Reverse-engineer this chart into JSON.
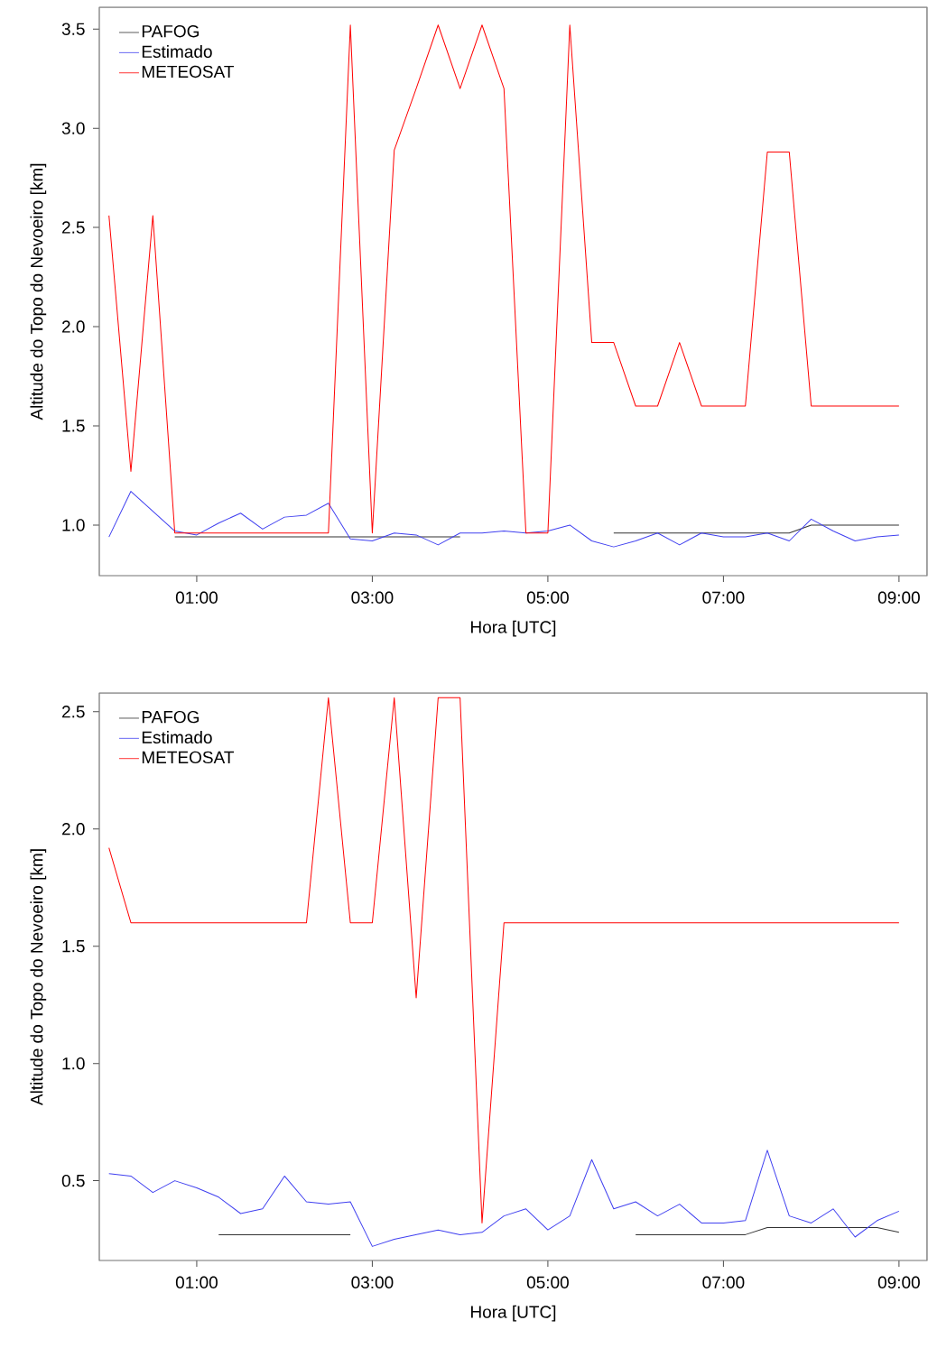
{
  "chart_data": [
    {
      "type": "line",
      "xlabel": "Hora [UTC]",
      "ylabel": "Altitude do Topo do Nevoeiro [km]",
      "legend": "top left",
      "marker": "none",
      "line_style": "solid",
      "x": [
        0,
        0.25,
        0.5,
        0.75,
        1,
        1.25,
        1.5,
        1.75,
        2,
        2.25,
        2.5,
        2.75,
        3,
        3.25,
        3.5,
        3.75,
        4,
        4.25,
        4.5,
        4.75,
        5,
        5.25,
        5.5,
        5.75,
        6,
        6.25,
        6.5,
        6.75,
        7,
        7.25,
        7.5,
        7.75,
        8,
        8.25,
        8.5,
        8.75,
        9
      ],
      "xlim": [
        -0.11,
        9.32
      ],
      "xticks": [
        {
          "value": 1,
          "label": "01:00"
        },
        {
          "value": 3,
          "label": "03:00"
        },
        {
          "value": 5,
          "label": "05:00"
        },
        {
          "value": 7,
          "label": "07:00"
        },
        {
          "value": 9,
          "label": "09:00"
        }
      ],
      "ylim": [
        0.745,
        3.61
      ],
      "yticks": [
        {
          "value": 1,
          "label": "1.0"
        },
        {
          "value": 1.5,
          "label": "1.5"
        },
        {
          "value": 2,
          "label": "2.0"
        },
        {
          "value": 2.5,
          "label": "2.5"
        },
        {
          "value": 3,
          "label": "3.0"
        },
        {
          "value": 3.5,
          "label": "3.5"
        }
      ],
      "series": [
        {
          "name": "PAFOG",
          "color": "#333333",
          "values": [
            null,
            null,
            null,
            0.94,
            0.94,
            0.94,
            0.94,
            0.94,
            0.94,
            0.94,
            0.94,
            0.94,
            0.94,
            0.94,
            0.94,
            0.94,
            0.94,
            null,
            null,
            null,
            null,
            null,
            null,
            0.96,
            0.96,
            0.96,
            0.96,
            0.96,
            0.96,
            0.96,
            0.96,
            0.96,
            1.0,
            1.0,
            1.0,
            1.0,
            1.0
          ]
        },
        {
          "name": "Estimado",
          "color": "#4040f0",
          "values": [
            0.94,
            1.17,
            1.07,
            0.97,
            0.95,
            1.01,
            1.06,
            0.98,
            1.04,
            1.05,
            1.11,
            0.93,
            0.92,
            0.96,
            0.95,
            0.9,
            0.96,
            0.96,
            0.97,
            0.96,
            0.97,
            1.0,
            0.92,
            0.89,
            0.92,
            0.96,
            0.9,
            0.96,
            0.94,
            0.94,
            0.96,
            0.92,
            1.03,
            0.97,
            0.92,
            0.94,
            0.95
          ]
        },
        {
          "name": "METEOSAT",
          "color": "#ff0000",
          "values": [
            2.56,
            1.27,
            2.56,
            0.96,
            0.96,
            0.96,
            0.96,
            0.96,
            0.96,
            0.96,
            0.96,
            3.52,
            0.96,
            2.89,
            3.2,
            3.52,
            3.2,
            3.52,
            3.2,
            0.96,
            0.96,
            3.52,
            1.92,
            1.92,
            1.6,
            1.6,
            1.92,
            1.6,
            1.6,
            1.6,
            2.88,
            2.88,
            1.6,
            1.6,
            1.6,
            1.6,
            1.6
          ]
        }
      ]
    },
    {
      "type": "line",
      "xlabel": "Hora [UTC]",
      "ylabel": "Altitude do Topo do Nevoeiro [km]",
      "legend": "top left",
      "marker": "none",
      "line_style": "solid",
      "x": [
        0,
        0.25,
        0.5,
        0.75,
        1,
        1.25,
        1.5,
        1.75,
        2,
        2.25,
        2.5,
        2.75,
        3,
        3.25,
        3.5,
        3.75,
        4,
        4.25,
        4.5,
        4.75,
        5,
        5.25,
        5.5,
        5.75,
        6,
        6.25,
        6.5,
        6.75,
        7,
        7.25,
        7.5,
        7.75,
        8,
        8.25,
        8.5,
        8.75,
        9
      ],
      "xlim": [
        -0.11,
        9.32
      ],
      "xticks": [
        {
          "value": 1,
          "label": "01:00"
        },
        {
          "value": 3,
          "label": "03:00"
        },
        {
          "value": 5,
          "label": "05:00"
        },
        {
          "value": 7,
          "label": "07:00"
        },
        {
          "value": 9,
          "label": "09:00"
        }
      ],
      "ylim": [
        0.16,
        2.58
      ],
      "yticks": [
        {
          "value": 0.5,
          "label": "0.5"
        },
        {
          "value": 1,
          "label": "1.0"
        },
        {
          "value": 1.5,
          "label": "1.5"
        },
        {
          "value": 2,
          "label": "2.0"
        },
        {
          "value": 2.5,
          "label": "2.5"
        }
      ],
      "series": [
        {
          "name": "PAFOG",
          "color": "#333333",
          "values": [
            null,
            null,
            null,
            null,
            null,
            0.27,
            0.27,
            0.27,
            0.27,
            0.27,
            0.27,
            0.27,
            null,
            null,
            null,
            null,
            null,
            null,
            null,
            null,
            null,
            null,
            null,
            null,
            0.27,
            0.27,
            0.27,
            0.27,
            0.27,
            0.27,
            0.3,
            0.3,
            0.3,
            0.3,
            0.3,
            0.3,
            0.28
          ]
        },
        {
          "name": "Estimado",
          "color": "#4040f0",
          "values": [
            0.53,
            0.52,
            0.45,
            0.5,
            0.47,
            0.43,
            0.36,
            0.38,
            0.52,
            0.41,
            0.4,
            0.41,
            0.22,
            0.25,
            0.27,
            0.29,
            0.27,
            0.28,
            0.35,
            0.38,
            0.29,
            0.35,
            0.59,
            0.38,
            0.41,
            0.35,
            0.4,
            0.32,
            0.32,
            0.33,
            0.63,
            0.35,
            0.32,
            0.38,
            0.26,
            0.33,
            0.37
          ]
        },
        {
          "name": "METEOSAT",
          "color": "#ff0000",
          "values": [
            1.92,
            1.6,
            1.6,
            1.6,
            1.6,
            1.6,
            1.6,
            1.6,
            1.6,
            1.6,
            2.56,
            1.6,
            1.6,
            2.56,
            1.28,
            2.56,
            2.56,
            0.32,
            1.6,
            1.6,
            1.6,
            1.6,
            1.6,
            1.6,
            1.6,
            1.6,
            1.6,
            1.6,
            1.6,
            1.6,
            1.6,
            1.6,
            1.6,
            1.6,
            1.6,
            1.6,
            1.6
          ]
        }
      ]
    }
  ]
}
